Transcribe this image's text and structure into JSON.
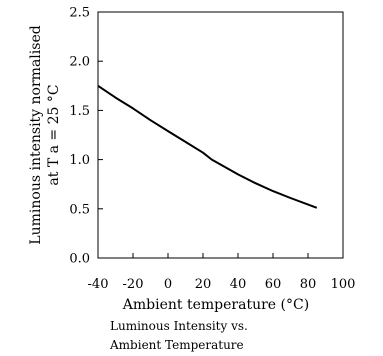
{
  "chart_data": {
    "type": "line",
    "title": "",
    "xlabel": "Ambient temperature (°C)",
    "ylabel_lines": [
      "Luminous intensity normalised",
      "at T a = 25 °C"
    ],
    "caption_lines": [
      "Luminous Intensity vs.",
      "Ambient Temperature"
    ],
    "xlim": [
      -40,
      100
    ],
    "ylim": [
      0,
      2.5
    ],
    "x_ticks": [
      -40,
      -20,
      0,
      20,
      40,
      60,
      80,
      100
    ],
    "y_ticks": [
      0.0,
      0.5,
      1.0,
      1.5,
      2.0,
      2.5
    ],
    "x_tick_labels": [
      "-40",
      "-20",
      "0",
      "20",
      "40",
      "60",
      "80",
      "100"
    ],
    "y_tick_labels": [
      "0.0",
      "0.5",
      "1.0",
      "1.5",
      "2.0",
      "2.5"
    ],
    "grid": false,
    "series": [
      {
        "x": [
          -40,
          -30,
          -20,
          -10,
          0,
          10,
          20,
          25,
          30,
          40,
          50,
          60,
          70,
          85
        ],
        "y": [
          1.75,
          1.63,
          1.52,
          1.4,
          1.29,
          1.18,
          1.07,
          1.0,
          0.95,
          0.85,
          0.76,
          0.68,
          0.61,
          0.51
        ]
      }
    ],
    "line_color": "#000000"
  }
}
